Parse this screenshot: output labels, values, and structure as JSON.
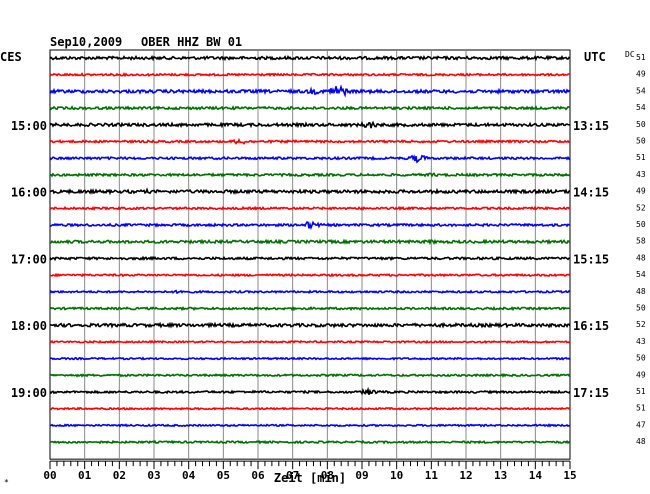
{
  "header": {
    "date": "Sep10,2009",
    "station": "OBER HHZ BW 01",
    "left_zone": "CES",
    "right_zone": "UTC",
    "dc_label": "DC"
  },
  "chart_data": {
    "type": "line",
    "title": "Sep10,2009   OBER HHZ BW 01",
    "xlabel": "Zeit [min]",
    "x_range": [
      0,
      15
    ],
    "x_ticks": [
      "00",
      "01",
      "02",
      "03",
      "04",
      "05",
      "06",
      "07",
      "08",
      "09",
      "10",
      "11",
      "12",
      "13",
      "14",
      "15"
    ],
    "colors": [
      "#000000",
      "#ff0000",
      "#0000ff",
      "#007000"
    ],
    "left_time_labels": [
      {
        "row": 4,
        "label": "15:00"
      },
      {
        "row": 8,
        "label": "16:00"
      },
      {
        "row": 12,
        "label": "17:00"
      },
      {
        "row": 16,
        "label": "18:00"
      },
      {
        "row": 20,
        "label": "19:00"
      }
    ],
    "right_time_labels": [
      {
        "row": 4,
        "label": "13:15"
      },
      {
        "row": 8,
        "label": "14:15"
      },
      {
        "row": 12,
        "label": "15:15"
      },
      {
        "row": 16,
        "label": "16:15"
      },
      {
        "row": 20,
        "label": "17:15"
      }
    ],
    "dc_offsets": [
      "51",
      "49",
      "54",
      "54",
      "50",
      "50",
      "51",
      "43",
      "49",
      "52",
      "50",
      "58",
      "48",
      "54",
      "48",
      "50",
      "52",
      "43",
      "50",
      "49",
      "51",
      "51",
      "47",
      "48"
    ],
    "trace_amplitudes": [
      1.4,
      1.0,
      1.5,
      1.2,
      1.4,
      1.0,
      1.1,
      1.1,
      1.5,
      1.0,
      1.1,
      1.3,
      1.1,
      0.9,
      0.9,
      1.0,
      1.5,
      0.8,
      0.8,
      0.9,
      1.0,
      0.8,
      0.8,
      0.9
    ],
    "events": [
      {
        "row": 2,
        "minute": 8.3,
        "amplitude": 7
      },
      {
        "row": 2,
        "minute": 7.6,
        "amplitude": 3
      },
      {
        "row": 4,
        "minute": 9.2,
        "amplitude": 4
      },
      {
        "row": 5,
        "minute": 5.5,
        "amplitude": 3
      },
      {
        "row": 6,
        "minute": 10.6,
        "amplitude": 4
      },
      {
        "row": 7,
        "minute": 11.0,
        "amplitude": 2
      },
      {
        "row": 8,
        "minute": 2.8,
        "amplitude": 2
      },
      {
        "row": 10,
        "minute": 7.5,
        "amplitude": 4
      },
      {
        "row": 11,
        "minute": 11.0,
        "amplitude": 2
      },
      {
        "row": 14,
        "minute": 3.8,
        "amplitude": 2
      },
      {
        "row": 20,
        "minute": 9.2,
        "amplitude": 3
      }
    ]
  }
}
